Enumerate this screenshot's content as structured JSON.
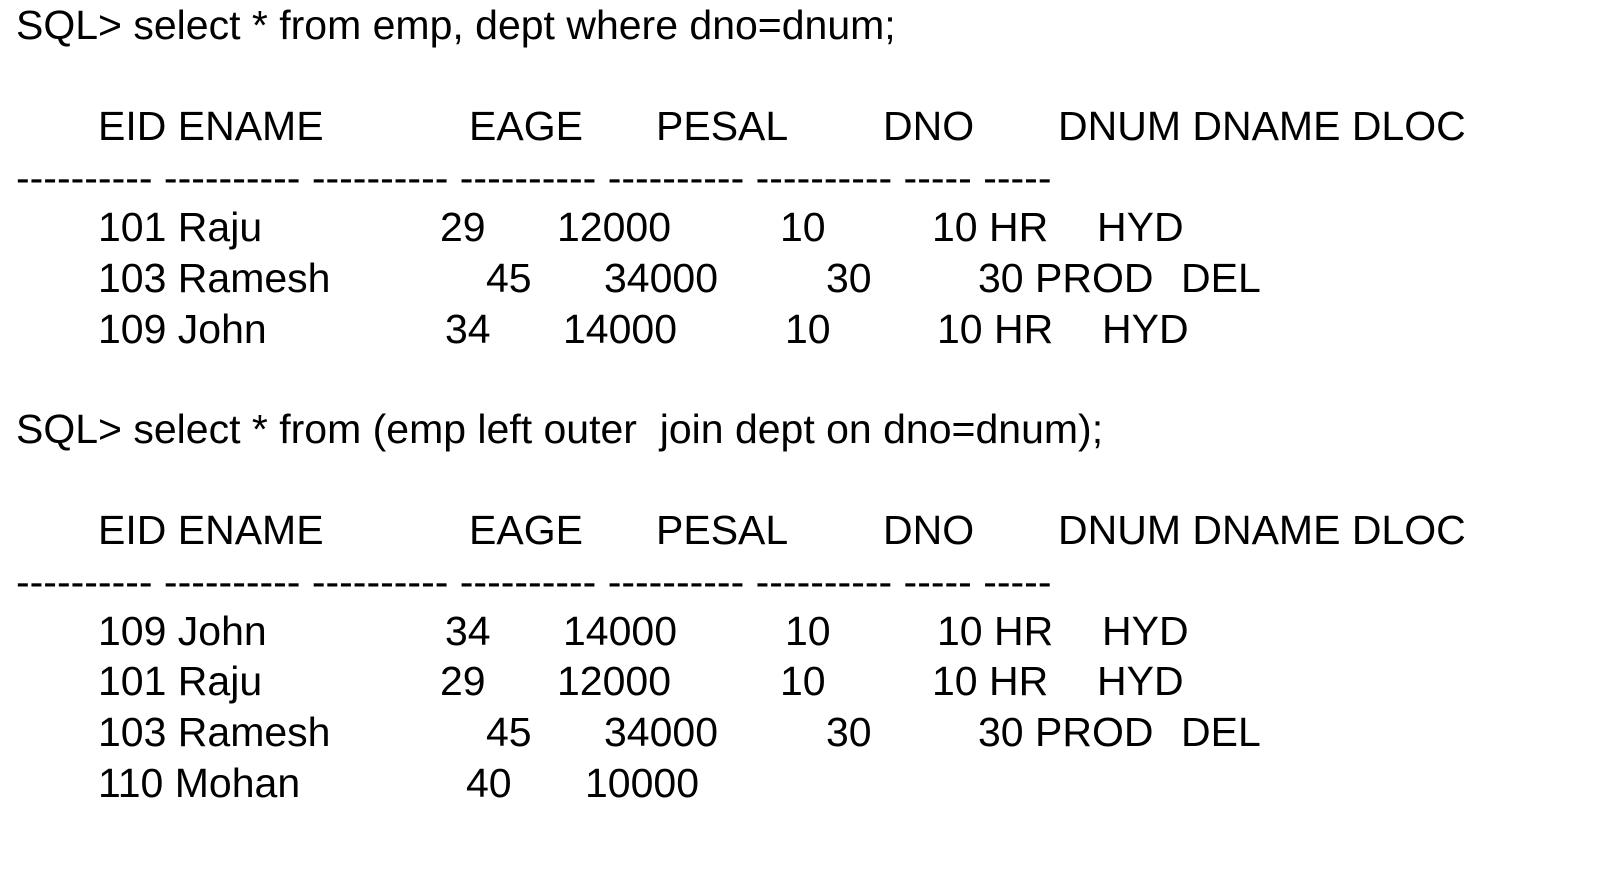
{
  "query1": {
    "prompt": "SQL> select * from emp, dept where dno=dnum;",
    "header": [
      "EID ENAME",
      "EAGE",
      "PESAL",
      "DNO",
      "DNUM DNAME DLOC"
    ],
    "dashes": "---------- ---------- ---------- ---------- ---------- ---------- ----- -----",
    "rows": [
      [
        "101 Raju",
        "29",
        "12000",
        "10",
        "10 HR",
        "HYD"
      ],
      [
        "103 Ramesh",
        "45",
        "34000",
        "30",
        "30 PROD",
        "DEL"
      ],
      [
        "109 John",
        "34",
        "14000",
        "10",
        "10 HR",
        "HYD"
      ]
    ]
  },
  "query2": {
    "prompt": "SQL> select * from (emp left outer  join dept on dno=dnum);",
    "header": [
      "EID ENAME",
      "EAGE",
      "PESAL",
      "DNO",
      "DNUM DNAME DLOC"
    ],
    "dashes": "---------- ---------- ---------- ---------- ---------- ---------- ----- -----",
    "rows": [
      [
        "109 John",
        "34",
        "14000",
        "10",
        "10 HR",
        "HYD"
      ],
      [
        "101 Raju",
        "29",
        "12000",
        "10",
        "10 HR",
        "HYD"
      ],
      [
        "103 Ramesh",
        "45",
        "34000",
        "30",
        "30 PROD",
        "DEL"
      ],
      [
        "110 Mohan",
        "40",
        "10000",
        "",
        "",
        ""
      ]
    ]
  }
}
